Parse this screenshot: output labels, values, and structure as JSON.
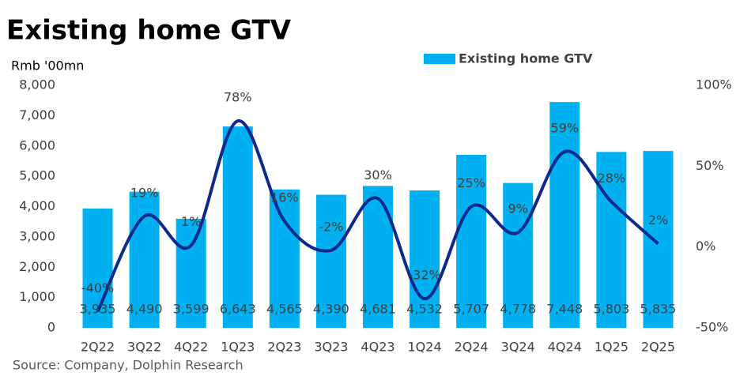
{
  "chart_data": {
    "type": "bar_line",
    "title": "Existing home GTV",
    "y_label": "Rmb '00mn",
    "source": "Source: Company, Dolphin Research",
    "categories": [
      "2Q22",
      "3Q22",
      "4Q22",
      "1Q23",
      "2Q23",
      "3Q23",
      "4Q23",
      "1Q24",
      "2Q24",
      "3Q24",
      "4Q24",
      "1Q25",
      "2Q25"
    ],
    "series": [
      {
        "name": "Existing home GTV",
        "type": "bar",
        "color": "#00b0f0",
        "values": [
          3935,
          4490,
          3599,
          6643,
          4565,
          4390,
          4681,
          4532,
          5707,
          4778,
          7448,
          5803,
          5835
        ],
        "value_labels": [
          "3,935",
          "4,490",
          "3,599",
          "6,643",
          "4,565",
          "4,390",
          "4,681",
          "4,532",
          "5,707",
          "4,778",
          "7,448",
          "5,803",
          "5,835"
        ]
      },
      {
        "type": "line",
        "axis": "y2",
        "color": "#0b2a8c",
        "values": [
          -40,
          19,
          1,
          78,
          16,
          -2,
          30,
          -32,
          25,
          9,
          59,
          28,
          2
        ],
        "value_labels": [
          "-40%",
          "19%",
          "1%",
          "78%",
          "16%",
          "-2%",
          "30%",
          "-32%",
          "25%",
          "9%",
          "59%",
          "28%",
          "2%"
        ]
      }
    ],
    "ylim": [
      0,
      8000
    ],
    "yticks": [
      0,
      {
        "value": 1000,
        "label": "1,000"
      },
      {
        "value": 2000,
        "label": "2,000"
      },
      {
        "value": 3000,
        "label": "3,000"
      },
      {
        "value": 4000,
        "label": "4,000"
      },
      {
        "value": 5000,
        "label": "5,000"
      },
      {
        "value": 6000,
        "label": "6,000"
      },
      {
        "value": 7000,
        "label": "7,000"
      },
      {
        "value": 8000,
        "label": "8,000"
      }
    ],
    "y2lim": [
      -50,
      100
    ],
    "y2ticks": [
      {
        "value": -50,
        "label": "-50%"
      },
      {
        "value": 0,
        "label": "0%"
      },
      {
        "value": 50,
        "label": "50%"
      },
      {
        "value": 100,
        "label": "100%"
      }
    ],
    "legend": "top"
  }
}
